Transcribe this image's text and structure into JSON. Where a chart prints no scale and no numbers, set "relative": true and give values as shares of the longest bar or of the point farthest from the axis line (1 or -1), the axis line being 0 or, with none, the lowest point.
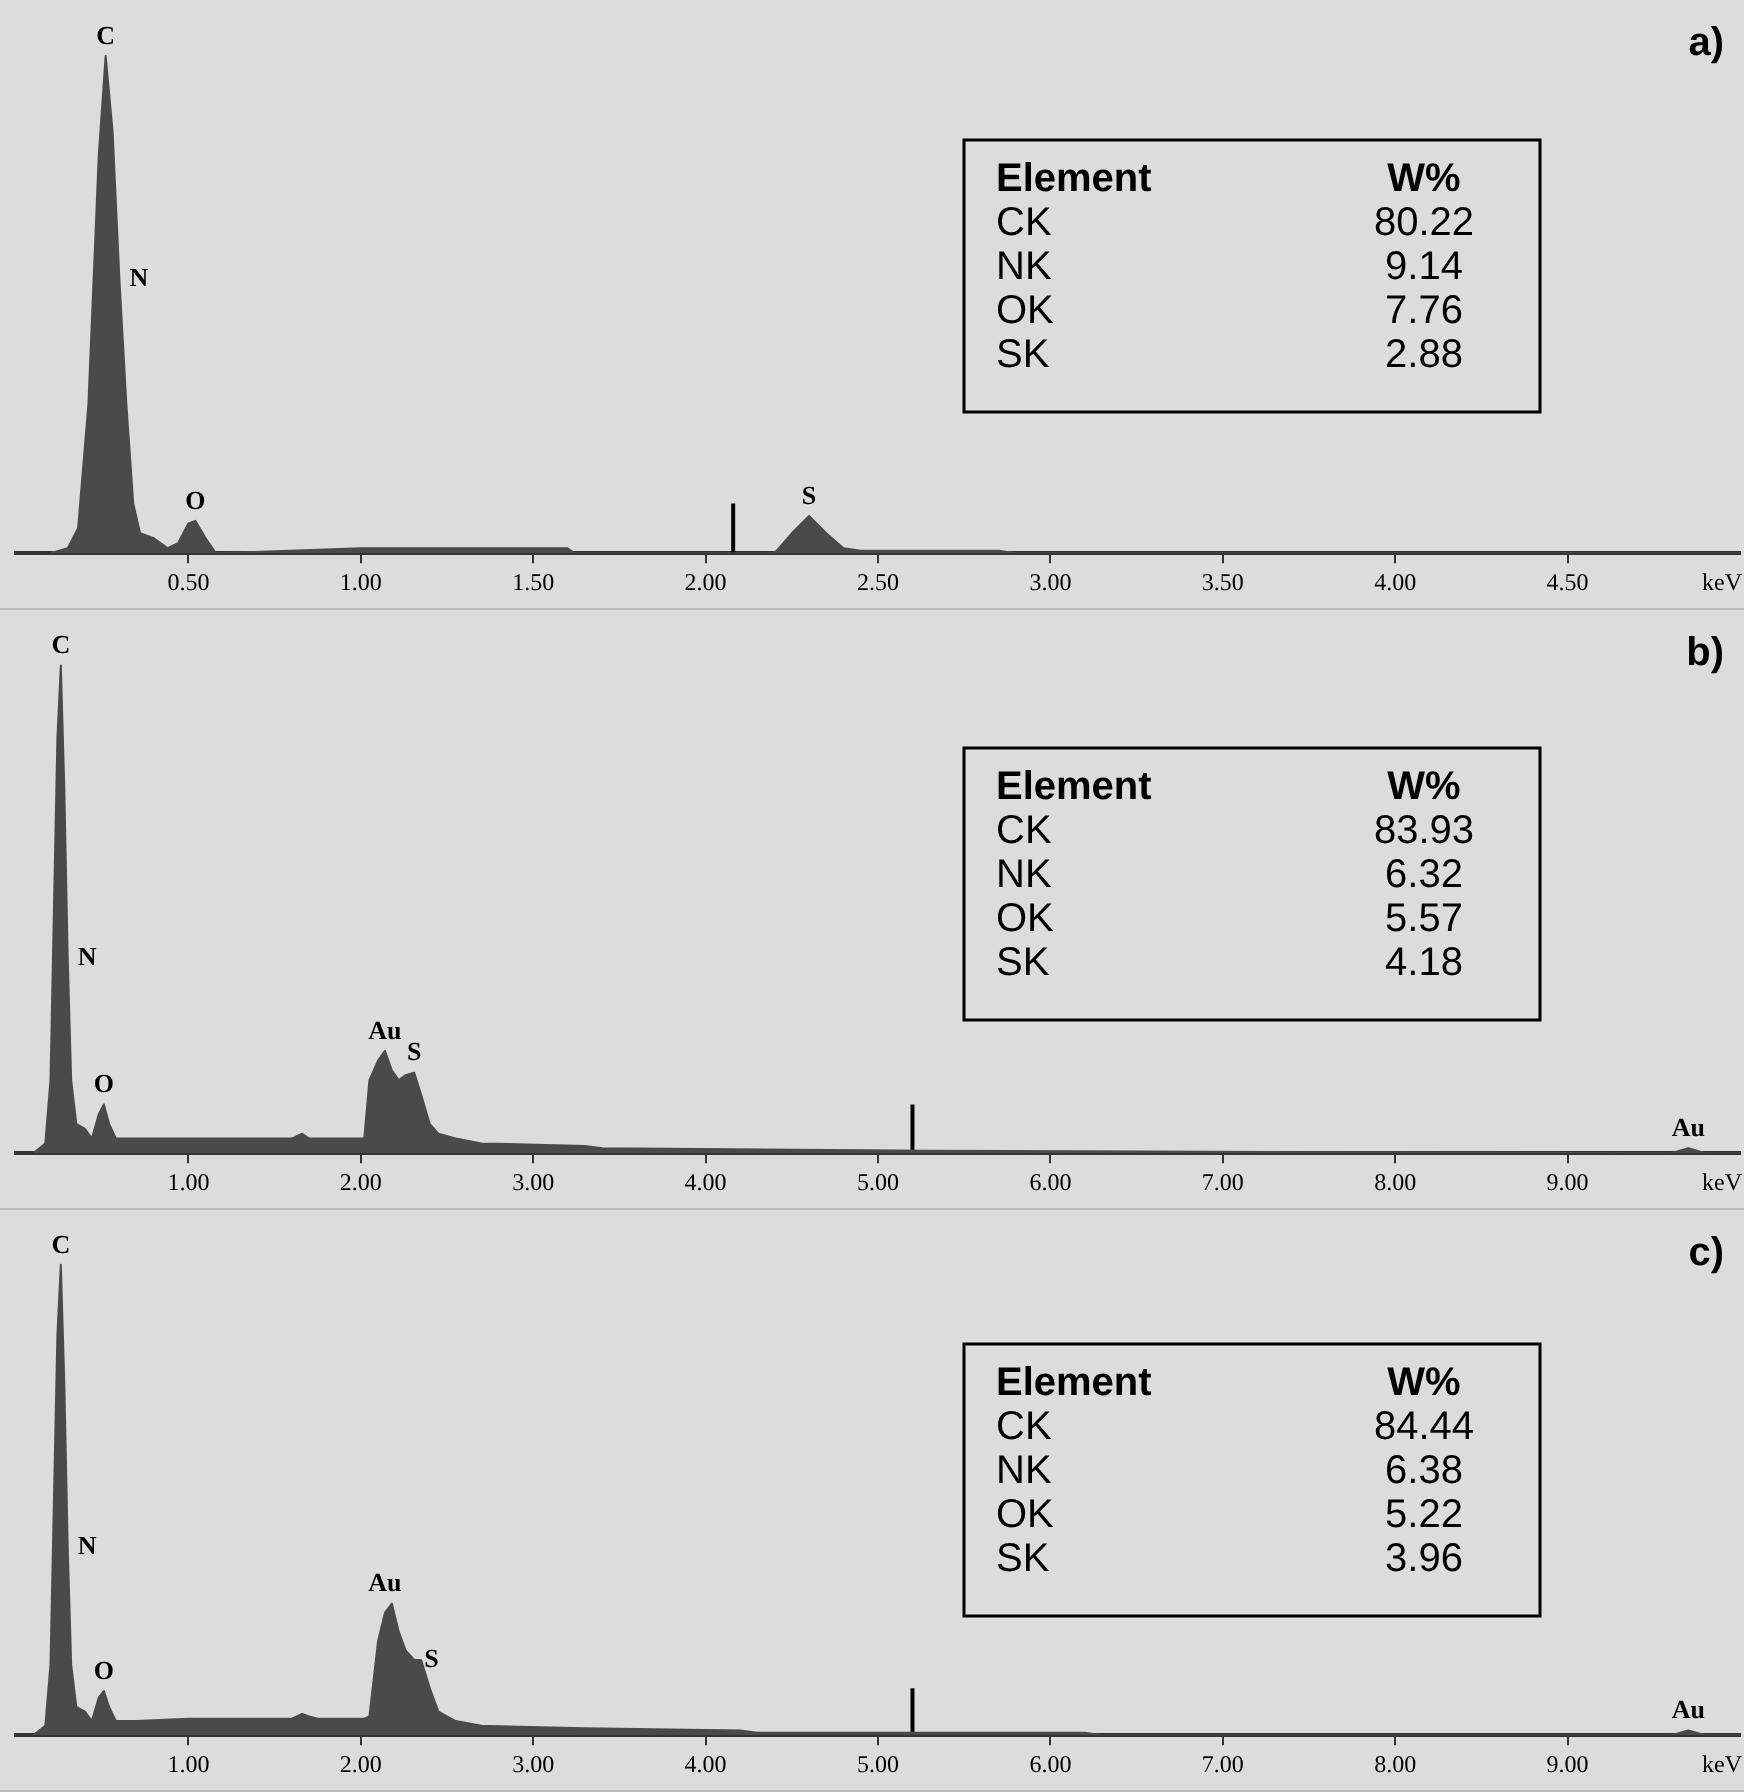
{
  "chart_data": [
    {
      "type": "area",
      "title": "a)",
      "xlabel": "keV",
      "relative": true,
      "xlim": [
        0,
        5.0
      ],
      "xticks": [
        {
          "value": 0.5,
          "label": "0.50"
        },
        {
          "value": 1,
          "label": "1.00"
        },
        {
          "value": 1.5,
          "label": "1.50"
        },
        {
          "value": 2,
          "label": "2.00"
        },
        {
          "value": 2.5,
          "label": "2.50"
        },
        {
          "value": 3,
          "label": "3.00"
        },
        {
          "value": 3.5,
          "label": "3.50"
        },
        {
          "value": 4,
          "label": "4.00"
        },
        {
          "value": 4.5,
          "label": "4.50"
        }
      ],
      "series": [
        {
          "color": "#4a4a4a",
          "x": [
            0.1,
            0.15,
            0.18,
            0.21,
            0.24,
            0.26,
            0.28,
            0.3,
            0.32,
            0.34,
            0.36,
            0.4,
            0.44,
            0.47,
            0.5,
            0.52,
            0.55,
            0.58,
            1.0,
            1.6,
            1.62,
            2.2,
            2.25,
            2.3,
            2.35,
            2.4,
            2.45,
            2.85,
            2.9,
            5.0
          ],
          "values": [
            0,
            0.01,
            0.05,
            0.3,
            0.8,
            1,
            0.85,
            0.55,
            0.3,
            0.1,
            0.04,
            0.03,
            0.01,
            0.02,
            0.06,
            0.065,
            0.03,
            0,
            0.01,
            0.01,
            0,
            0,
            0.04,
            0.075,
            0.04,
            0.01,
            0.005,
            0.005,
            0,
            0
          ]
        },
        {
          "type": "line",
          "color": "#000000",
          "x": [
            2.08,
            2.08
          ],
          "values": [
            0,
            0.1
          ]
        }
      ],
      "annotations": [
        {
          "text": "C",
          "x": 0.26,
          "y": 1
        },
        {
          "text": "N",
          "x": 0.3,
          "y": 0.55
        },
        {
          "text": "O",
          "x": 0.52,
          "y": 0.065
        },
        {
          "text": "S",
          "x": 2.3,
          "y": 0.075
        },
        "Element",
        "W%",
        "CK",
        "80.22",
        "NK",
        "9.14",
        "OK",
        "7.76",
        "SK",
        "2.88"
      ]
    },
    {
      "type": "area",
      "title": "b)",
      "xlabel": "keV",
      "relative": true,
      "xlim": [
        0,
        10
      ],
      "xticks": [
        {
          "value": 1,
          "label": "1.00"
        },
        {
          "value": 2,
          "label": "2.00"
        },
        {
          "value": 3,
          "label": "3.00"
        },
        {
          "value": 4,
          "label": "4.00"
        },
        {
          "value": 5,
          "label": "5.00"
        },
        {
          "value": 6,
          "label": "6.00"
        },
        {
          "value": 7,
          "label": "7.00"
        },
        {
          "value": 8,
          "label": "8.00"
        },
        {
          "value": 9,
          "label": "9.00"
        }
      ],
      "series": [
        {
          "color": "#4a4a4a",
          "x": [
            0.1,
            0.17,
            0.2,
            0.22,
            0.24,
            0.26,
            0.28,
            0.3,
            0.32,
            0.35,
            0.4,
            0.44,
            0.48,
            0.51,
            0.54,
            0.58,
            0.7,
            1.0,
            1.6,
            1.66,
            1.7,
            2.02,
            2.05,
            2.1,
            2.14,
            2.18,
            2.22,
            2.26,
            2.31,
            2.35,
            2.4,
            2.45,
            2.55,
            2.7,
            3.3,
            3.4,
            5.3,
            9.6,
            9.7,
            9.8,
            10
          ],
          "values": [
            0,
            0.02,
            0.15,
            0.5,
            0.85,
            1,
            0.75,
            0.4,
            0.15,
            0.06,
            0.05,
            0.03,
            0.08,
            0.1,
            0.06,
            0.03,
            0.03,
            0.03,
            0.03,
            0.04,
            0.03,
            0.03,
            0.15,
            0.19,
            0.21,
            0.17,
            0.15,
            0.16,
            0.165,
            0.12,
            0.06,
            0.04,
            0.03,
            0.02,
            0.015,
            0.01,
            0.005,
            0,
            0.01,
            0,
            0
          ]
        },
        {
          "type": "line",
          "color": "#000000",
          "x": [
            5.2,
            5.2
          ],
          "values": [
            0,
            0.1
          ]
        }
      ],
      "annotations": [
        {
          "text": "C",
          "x": 0.26,
          "y": 1
        },
        {
          "text": "N",
          "x": 0.3,
          "y": 0.4
        },
        {
          "text": "O",
          "x": 0.51,
          "y": 0.1
        },
        {
          "text": "Au",
          "x": 2.14,
          "y": 0.21
        },
        {
          "text": "S",
          "x": 2.31,
          "y": 0.165
        },
        {
          "text": "Au",
          "x": 9.7,
          "y": 0.01
        },
        "Element",
        "W%",
        "CK",
        "83.93",
        "NK",
        "6.32",
        "OK",
        "5.57",
        "SK",
        "4.18"
      ]
    },
    {
      "type": "area",
      "title": "c)",
      "xlabel": "keV",
      "relative": true,
      "xlim": [
        0,
        10
      ],
      "xticks": [
        {
          "value": 1,
          "label": "1.00"
        },
        {
          "value": 2,
          "label": "2.00"
        },
        {
          "value": 3,
          "label": "3.00"
        },
        {
          "value": 4,
          "label": "4.00"
        },
        {
          "value": 5,
          "label": "5.00"
        },
        {
          "value": 6,
          "label": "6.00"
        },
        {
          "value": 7,
          "label": "7.00"
        },
        {
          "value": 8,
          "label": "8.00"
        },
        {
          "value": 9,
          "label": "9.00"
        }
      ],
      "series": [
        {
          "color": "#4a4a4a",
          "x": [
            0.1,
            0.17,
            0.2,
            0.22,
            0.24,
            0.26,
            0.28,
            0.3,
            0.32,
            0.35,
            0.4,
            0.44,
            0.48,
            0.51,
            0.54,
            0.58,
            0.7,
            1.0,
            1.6,
            1.66,
            1.7,
            1.75,
            2.02,
            2.05,
            2.1,
            2.14,
            2.18,
            2.22,
            2.26,
            2.31,
            2.35,
            2.4,
            2.45,
            2.55,
            2.7,
            3.3,
            4.2,
            4.3,
            6.2,
            6.3,
            9.6,
            9.7,
            9.8,
            10
          ],
          "values": [
            0,
            0.02,
            0.15,
            0.5,
            0.85,
            1,
            0.75,
            0.4,
            0.15,
            0.06,
            0.05,
            0.03,
            0.08,
            0.094,
            0.06,
            0.03,
            0.03,
            0.035,
            0.035,
            0.045,
            0.04,
            0.035,
            0.035,
            0.04,
            0.2,
            0.26,
            0.28,
            0.22,
            0.18,
            0.16,
            0.16,
            0.1,
            0.05,
            0.03,
            0.02,
            0.015,
            0.01,
            0.005,
            0.005,
            0,
            0,
            0.01,
            0,
            0
          ]
        },
        {
          "type": "line",
          "color": "#000000",
          "x": [
            5.2,
            5.2
          ],
          "values": [
            0,
            0.1
          ]
        }
      ],
      "annotations": [
        {
          "text": "C",
          "x": 0.26,
          "y": 1
        },
        {
          "text": "N",
          "x": 0.3,
          "y": 0.4
        },
        {
          "text": "O",
          "x": 0.51,
          "y": 0.094
        },
        {
          "text": "Au",
          "x": 2.14,
          "y": 0.28
        },
        {
          "text": "S",
          "x": 2.31,
          "y": 0.16
        },
        {
          "text": "Au",
          "x": 9.7,
          "y": 0.01
        },
        "Element",
        "W%",
        "CK",
        "84.44",
        "NK",
        "6.38",
        "OK",
        "5.22",
        "SK",
        "3.96"
      ]
    }
  ]
}
